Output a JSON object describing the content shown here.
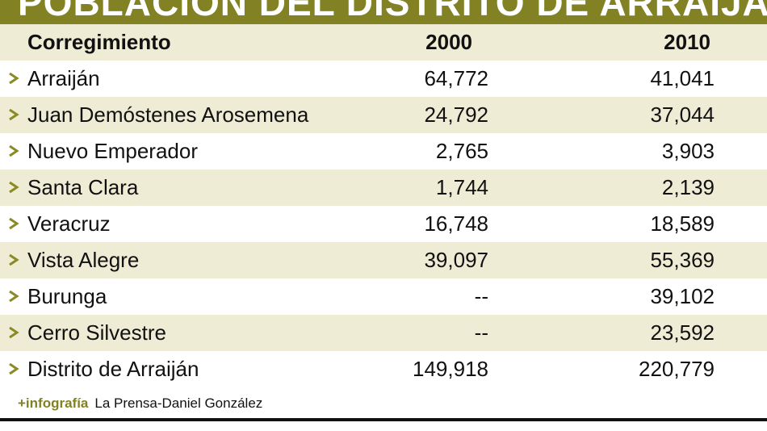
{
  "header": {
    "title": "POBLACIÓN DEL DISTRITO DE ARRAIJÁN"
  },
  "table": {
    "columns": [
      "Corregimiento",
      "2000",
      "2010"
    ],
    "rows": [
      [
        "Arraiján",
        "64,772",
        "41,041"
      ],
      [
        "Juan Demóstenes Arosemena",
        "24,792",
        "37,044"
      ],
      [
        "Nuevo Emperador",
        "2,765",
        "3,903"
      ],
      [
        "Santa Clara",
        "1,744",
        "2,139"
      ],
      [
        "Veracruz",
        "16,748",
        "18,589"
      ],
      [
        "Vista Alegre",
        "39,097",
        "55,369"
      ],
      [
        "Burunga",
        "--",
        "39,102"
      ],
      [
        "Cerro Silvestre",
        "--",
        "23,592"
      ],
      [
        "Distrito de Arraiján",
        "149,918",
        "220,779"
      ]
    ]
  },
  "footer": {
    "credit_label": "+infografía",
    "credit": "La Prensa-Daniel González"
  }
}
